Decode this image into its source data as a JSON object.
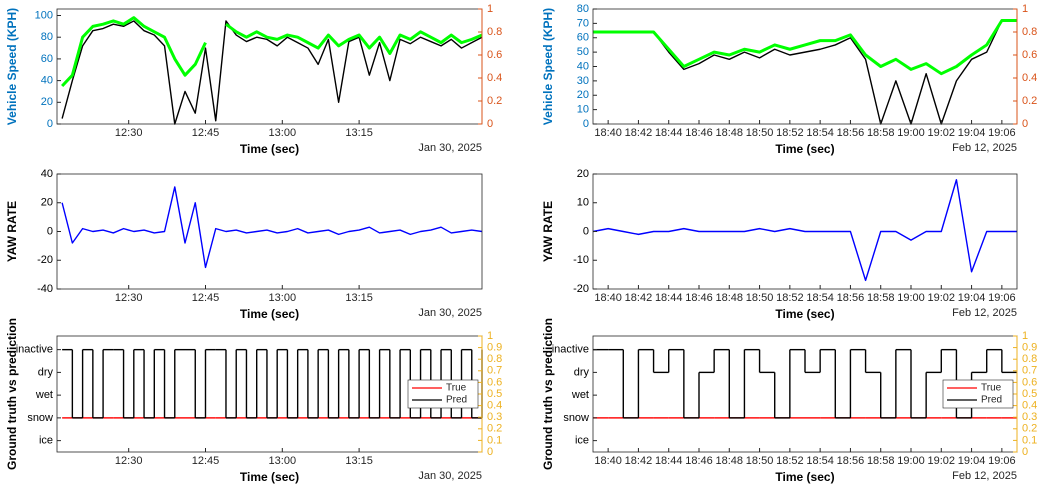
{
  "chart_data": [
    {
      "type": "line",
      "ylabel": "Vehicle Speed (KPH)",
      "xlabel": "Time (sec)",
      "date_label": "Jan 30, 2025",
      "x": [
        "12:17",
        "12:19",
        "12:21",
        "12:23",
        "12:25",
        "12:27",
        "12:29",
        "12:31",
        "12:33",
        "12:35",
        "12:37",
        "12:39",
        "12:41",
        "12:43",
        "12:45",
        "12:47",
        "12:49",
        "12:51",
        "12:53",
        "12:55",
        "12:57",
        "12:59",
        "13:01",
        "13:03",
        "13:05",
        "13:07",
        "13:09",
        "13:11",
        "13:13",
        "13:15",
        "13:17",
        "13:19",
        "13:21",
        "13:23",
        "13:25",
        "13:27",
        "13:29",
        "13:31",
        "13:33",
        "13:35",
        "13:37",
        "13:39"
      ],
      "xlim": [
        "12:16",
        "13:39"
      ],
      "xticks": [
        "12:30",
        "12:45",
        "13:00",
        "13:15"
      ],
      "ylim": [
        0,
        106
      ],
      "yticks": [
        0,
        20,
        40,
        60,
        80,
        100
      ],
      "y_color": "#0072bd",
      "y2lim": [
        0,
        1
      ],
      "y2ticks": [
        0,
        0.2,
        0.4,
        0.6,
        0.8,
        1
      ],
      "y2_color": "#d95319",
      "series": [
        {
          "color": "#000000",
          "values": [
            5,
            40,
            72,
            86,
            88,
            92,
            90,
            95,
            86,
            82,
            72,
            0,
            30,
            10,
            70,
            3,
            95,
            82,
            76,
            80,
            78,
            72,
            80,
            75,
            70,
            55,
            78,
            20,
            76,
            80,
            45,
            75,
            40,
            78,
            74,
            80,
            76,
            72,
            78,
            70,
            75,
            80
          ]
        },
        {
          "color": "#00ff00",
          "values": [
            35,
            45,
            80,
            90,
            92,
            95,
            92,
            98,
            90,
            85,
            80,
            60,
            45,
            55,
            75,
            null,
            92,
            85,
            80,
            85,
            80,
            78,
            82,
            80,
            75,
            70,
            82,
            72,
            78,
            82,
            70,
            80,
            65,
            82,
            78,
            85,
            80,
            75,
            82,
            75,
            78,
            82
          ]
        }
      ]
    },
    {
      "type": "line",
      "ylabel": "YAW RATE",
      "xlabel": "Time (sec)",
      "date_label": "Jan 30, 2025",
      "x": [
        "12:17",
        "12:19",
        "12:21",
        "12:23",
        "12:25",
        "12:27",
        "12:29",
        "12:31",
        "12:33",
        "12:35",
        "12:37",
        "12:39",
        "12:41",
        "12:43",
        "12:45",
        "12:47",
        "12:49",
        "12:51",
        "12:53",
        "12:55",
        "12:57",
        "12:59",
        "13:01",
        "13:03",
        "13:05",
        "13:07",
        "13:09",
        "13:11",
        "13:13",
        "13:15",
        "13:17",
        "13:19",
        "13:21",
        "13:23",
        "13:25",
        "13:27",
        "13:29",
        "13:31",
        "13:33",
        "13:35",
        "13:37",
        "13:39"
      ],
      "xlim": [
        "12:16",
        "13:39"
      ],
      "xticks": [
        "12:30",
        "12:45",
        "13:00",
        "13:15"
      ],
      "ylim": [
        -40,
        40
      ],
      "yticks": [
        -40,
        -20,
        0,
        20,
        40
      ],
      "y_color": "#000000",
      "series": [
        {
          "color": "#0000ff",
          "values": [
            20,
            -8,
            2,
            0,
            1,
            -1,
            2,
            0,
            1,
            -1,
            0,
            31,
            -8,
            20,
            -25,
            2,
            0,
            1,
            -1,
            0,
            1,
            -1,
            0,
            2,
            -1,
            0,
            1,
            -2,
            0,
            1,
            3,
            -1,
            0,
            1,
            -2,
            0,
            1,
            3,
            -1,
            0,
            1,
            0
          ]
        }
      ]
    },
    {
      "type": "line",
      "ylabel": "Ground truth vs prediction",
      "xlabel": "Time (sec)",
      "date_label": "Jan 30, 2025",
      "step": true,
      "legend": "east",
      "x": [
        "12:17",
        "12:19",
        "12:21",
        "12:23",
        "12:25",
        "12:27",
        "12:29",
        "12:31",
        "12:33",
        "12:35",
        "12:37",
        "12:39",
        "12:41",
        "12:43",
        "12:45",
        "12:47",
        "12:49",
        "12:51",
        "12:53",
        "12:55",
        "12:57",
        "12:59",
        "13:01",
        "13:03",
        "13:05",
        "13:07",
        "13:09",
        "13:11",
        "13:13",
        "13:15",
        "13:17",
        "13:19",
        "13:21",
        "13:23",
        "13:25",
        "13:27",
        "13:29",
        "13:31",
        "13:33",
        "13:35",
        "13:37",
        "13:39"
      ],
      "xlim": [
        "12:16",
        "13:39"
      ],
      "xticks": [
        "12:30",
        "12:45",
        "13:00",
        "13:15"
      ],
      "ylim": [
        -0.5,
        4.6
      ],
      "yticks": [
        {
          "value": 0,
          "label": "ice"
        },
        {
          "value": 1,
          "label": "snow"
        },
        {
          "value": 2,
          "label": "wet"
        },
        {
          "value": 3,
          "label": "dry"
        },
        {
          "value": 4,
          "label": "inactive"
        }
      ],
      "y_color": "#000000",
      "y2lim": [
        0,
        1
      ],
      "y2ticks": [
        0,
        0.1,
        0.2,
        0.3,
        0.4,
        0.5,
        0.6,
        0.7,
        0.8,
        0.9,
        1
      ],
      "y2_color": "#edb120",
      "series": [
        {
          "name": "True",
          "color": "#ff0000",
          "values": [
            1,
            1,
            1,
            1,
            1,
            1,
            1,
            1,
            1,
            1,
            1,
            1,
            1,
            1,
            1,
            1,
            1,
            1,
            1,
            1,
            1,
            1,
            1,
            1,
            1,
            1,
            1,
            1,
            1,
            1,
            1,
            1,
            1,
            1,
            1,
            1,
            1,
            1,
            1,
            1,
            1,
            1
          ]
        },
        {
          "name": "Pred",
          "color": "#000000",
          "values": [
            4,
            1,
            4,
            1,
            4,
            4,
            1,
            4,
            1,
            4,
            1,
            4,
            4,
            1,
            4,
            4,
            1,
            4,
            1,
            4,
            1,
            4,
            1,
            4,
            1,
            4,
            1,
            4,
            1,
            4,
            1,
            4,
            1,
            4,
            1,
            4,
            1,
            4,
            1,
            4,
            1,
            4
          ]
        }
      ]
    },
    {
      "type": "line",
      "ylabel": "Vehicle Speed (KPH)",
      "xlabel": "Time (sec)",
      "date_label": "Feb 12, 2025",
      "x": [
        "18:39",
        "18:40",
        "18:41",
        "18:42",
        "18:43",
        "18:44",
        "18:45",
        "18:46",
        "18:47",
        "18:48",
        "18:49",
        "18:50",
        "18:51",
        "18:52",
        "18:53",
        "18:54",
        "18:55",
        "18:56",
        "18:57",
        "18:58",
        "18:59",
        "19:00",
        "19:01",
        "19:02",
        "19:03",
        "19:04",
        "19:05",
        "19:06",
        "19:07"
      ],
      "xlim": [
        "18:39",
        "19:07"
      ],
      "xticks": [
        "18:40",
        "18:42",
        "18:44",
        "18:46",
        "18:48",
        "18:50",
        "18:52",
        "18:54",
        "18:56",
        "18:58",
        "19:00",
        "19:02",
        "19:04",
        "19:06"
      ],
      "ylim": [
        0,
        80
      ],
      "yticks": [
        0,
        10,
        20,
        30,
        40,
        50,
        60,
        70,
        80
      ],
      "y_color": "#0072bd",
      "y2lim": [
        0,
        1
      ],
      "y2ticks": [
        0,
        0.2,
        0.4,
        0.6,
        0.8,
        1
      ],
      "y2_color": "#d95319",
      "series": [
        {
          "color": "#000000",
          "values": [
            64,
            64,
            64,
            64,
            64,
            50,
            38,
            42,
            48,
            45,
            50,
            46,
            52,
            48,
            50,
            52,
            55,
            60,
            45,
            0,
            30,
            0,
            35,
            0,
            30,
            45,
            50,
            72,
            72
          ]
        },
        {
          "color": "#00ff00",
          "values": [
            64,
            64,
            64,
            64,
            64,
            52,
            40,
            45,
            50,
            48,
            52,
            50,
            55,
            52,
            55,
            58,
            58,
            62,
            48,
            40,
            45,
            38,
            42,
            35,
            40,
            48,
            55,
            72,
            72
          ]
        }
      ]
    },
    {
      "type": "line",
      "ylabel": "YAW RATE",
      "xlabel": "Time (sec)",
      "date_label": "Feb 12, 2025",
      "x": [
        "18:39",
        "18:40",
        "18:41",
        "18:42",
        "18:43",
        "18:44",
        "18:45",
        "18:46",
        "18:47",
        "18:48",
        "18:49",
        "18:50",
        "18:51",
        "18:52",
        "18:53",
        "18:54",
        "18:55",
        "18:56",
        "18:57",
        "18:58",
        "18:59",
        "19:00",
        "19:01",
        "19:02",
        "19:03",
        "19:04",
        "19:05",
        "19:06",
        "19:07"
      ],
      "xlim": [
        "18:39",
        "19:07"
      ],
      "xticks": [
        "18:40",
        "18:42",
        "18:44",
        "18:46",
        "18:48",
        "18:50",
        "18:52",
        "18:54",
        "18:56",
        "18:58",
        "19:00",
        "19:02",
        "19:04",
        "19:06"
      ],
      "ylim": [
        -20,
        20
      ],
      "yticks": [
        -20,
        -10,
        0,
        10,
        20
      ],
      "y_color": "#000000",
      "series": [
        {
          "color": "#0000ff",
          "values": [
            0,
            1,
            0,
            -1,
            0,
            0,
            1,
            0,
            0,
            0,
            0,
            1,
            0,
            1,
            0,
            0,
            0,
            0,
            -17,
            0,
            0,
            -3,
            0,
            0,
            18,
            -14,
            0,
            0,
            0
          ]
        }
      ]
    },
    {
      "type": "line",
      "ylabel": "Ground truth vs prediction",
      "xlabel": "Time (sec)",
      "date_label": "Feb 12, 2025",
      "step": true,
      "legend": "east",
      "x": [
        "18:39",
        "18:40",
        "18:41",
        "18:42",
        "18:43",
        "18:44",
        "18:45",
        "18:46",
        "18:47",
        "18:48",
        "18:49",
        "18:50",
        "18:51",
        "18:52",
        "18:53",
        "18:54",
        "18:55",
        "18:56",
        "18:57",
        "18:58",
        "18:59",
        "19:00",
        "19:01",
        "19:02",
        "19:03",
        "19:04",
        "19:05",
        "19:06",
        "19:07"
      ],
      "xlim": [
        "18:39",
        "19:07"
      ],
      "xticks": [
        "18:40",
        "18:42",
        "18:44",
        "18:46",
        "18:48",
        "18:50",
        "18:52",
        "18:54",
        "18:56",
        "18:58",
        "19:00",
        "19:02",
        "19:04",
        "19:06"
      ],
      "ylim": [
        -0.5,
        4.6
      ],
      "yticks": [
        {
          "value": 0,
          "label": "ice"
        },
        {
          "value": 1,
          "label": "snow"
        },
        {
          "value": 2,
          "label": "wet"
        },
        {
          "value": 3,
          "label": "dry"
        },
        {
          "value": 4,
          "label": "inactive"
        }
      ],
      "y_color": "#000000",
      "y2lim": [
        0,
        1
      ],
      "y2ticks": [
        0,
        0.1,
        0.2,
        0.3,
        0.4,
        0.5,
        0.6,
        0.7,
        0.8,
        0.9,
        1
      ],
      "y2_color": "#edb120",
      "series": [
        {
          "name": "True",
          "color": "#ff0000",
          "values": [
            1,
            1,
            1,
            1,
            1,
            1,
            1,
            1,
            1,
            1,
            1,
            1,
            1,
            1,
            1,
            1,
            1,
            1,
            1,
            1,
            1,
            1,
            1,
            1,
            1,
            1,
            1,
            1,
            1
          ]
        },
        {
          "name": "Pred",
          "color": "#000000",
          "values": [
            4,
            4,
            1,
            4,
            3,
            4,
            1,
            3,
            4,
            1,
            4,
            3,
            1,
            4,
            3,
            4,
            1,
            4,
            3,
            1,
            4,
            1,
            3,
            4,
            1,
            3,
            4,
            3,
            3
          ]
        }
      ]
    }
  ]
}
